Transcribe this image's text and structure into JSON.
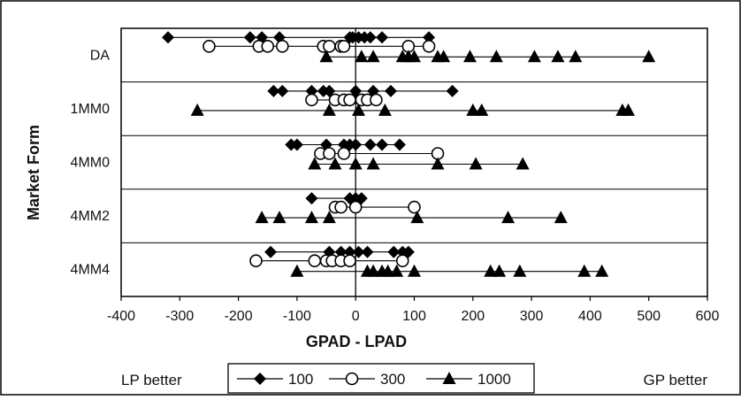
{
  "chart_data": {
    "type": "scatter",
    "title": "",
    "xlabel": "GPAD - LPAD",
    "ylabel": "Market Form",
    "xlim": [
      -400,
      600
    ],
    "xticks": [
      -400,
      -300,
      -200,
      -100,
      0,
      100,
      200,
      300,
      400,
      500,
      600
    ],
    "categories": [
      "DA",
      "1MM0",
      "4MM0",
      "4MM2",
      "4MM4"
    ],
    "grid": false,
    "legend_position": "bottom",
    "annotations": {
      "left": "LP better",
      "right": "GP better"
    },
    "series": [
      {
        "name": "100",
        "marker": "diamond",
        "values": {
          "DA": [
            -320,
            -180,
            -160,
            -130,
            -10,
            -5,
            5,
            15,
            25,
            45,
            125
          ],
          "1MM0": [
            -140,
            -125,
            -75,
            -55,
            -45,
            0,
            30,
            60,
            165
          ],
          "4MM0": [
            -110,
            -100,
            -50,
            -20,
            -10,
            0,
            25,
            45,
            75
          ],
          "4MM2": [
            -75,
            -10,
            0,
            10
          ],
          "4MM4": [
            -145,
            -45,
            -25,
            -10,
            5,
            20,
            65,
            80,
            90
          ]
        }
      },
      {
        "name": "300",
        "marker": "circle",
        "values": {
          "DA": [
            -250,
            -165,
            -150,
            -125,
            -55,
            -45,
            -25,
            -20,
            90,
            125
          ],
          "1MM0": [
            -75,
            -35,
            -20,
            -10,
            10,
            20,
            35
          ],
          "4MM0": [
            -60,
            -45,
            -20,
            140
          ],
          "4MM2": [
            -35,
            -25,
            0,
            100
          ],
          "4MM4": [
            -170,
            -70,
            -50,
            -40,
            -25,
            -10,
            80
          ]
        }
      },
      {
        "name": "1000",
        "marker": "triangle",
        "values": {
          "DA": [
            -50,
            10,
            30,
            80,
            90,
            100,
            140,
            150,
            195,
            240,
            305,
            345,
            375,
            500
          ],
          "1MM0": [
            -270,
            -45,
            5,
            50,
            200,
            215,
            455,
            465
          ],
          "4MM0": [
            -70,
            -35,
            0,
            30,
            140,
            205,
            285
          ],
          "4MM2": [
            -160,
            -130,
            -75,
            -45,
            105,
            260,
            350
          ],
          "4MM4": [
            -100,
            20,
            30,
            45,
            55,
            70,
            100,
            230,
            245,
            280,
            390,
            420
          ]
        }
      }
    ]
  }
}
